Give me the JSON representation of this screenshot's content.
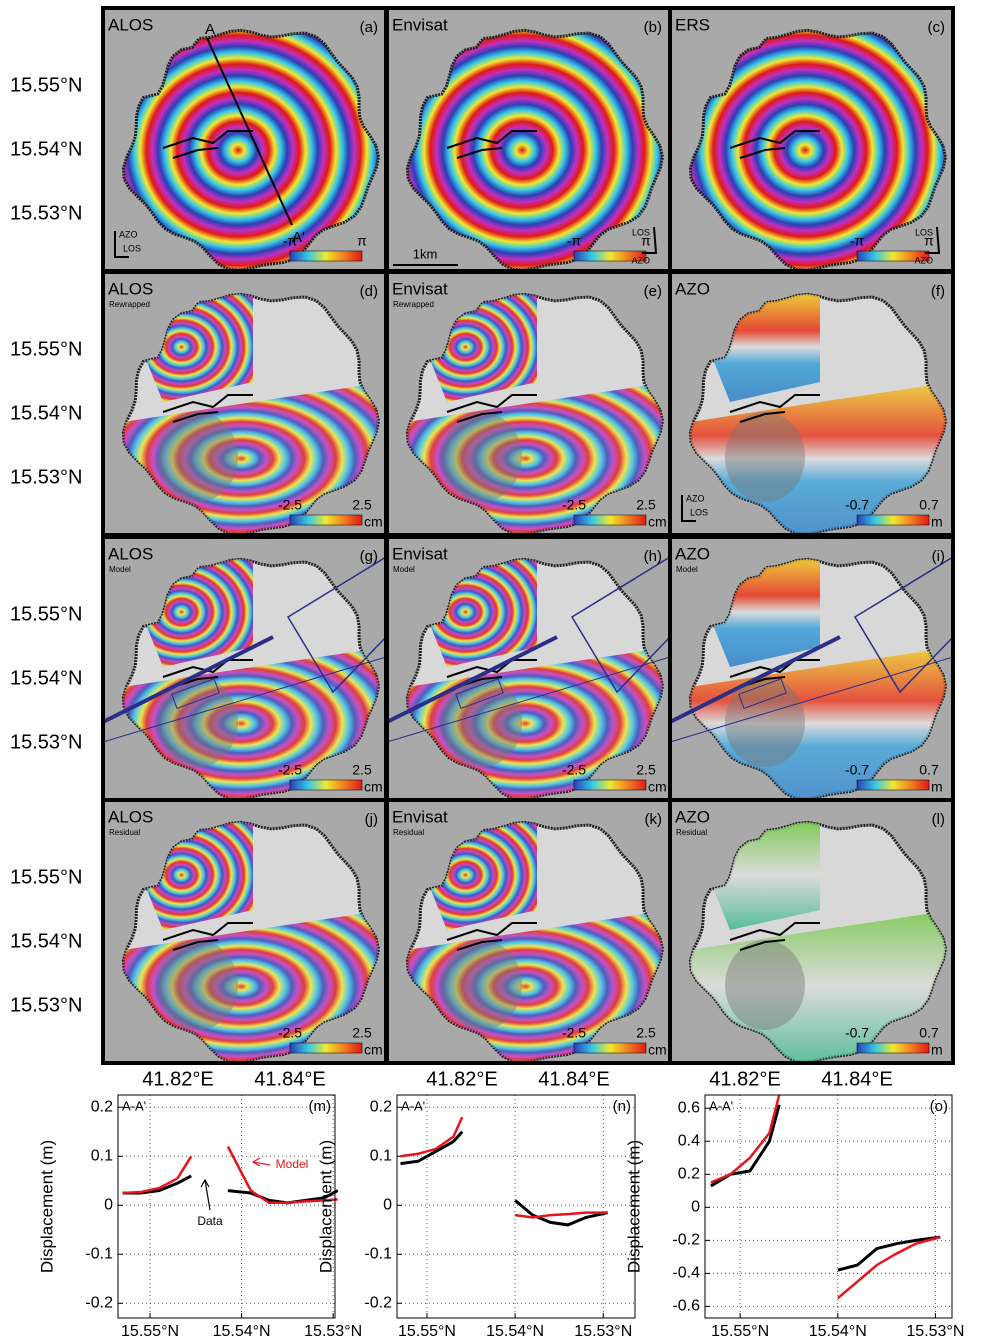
{
  "latitude_labels": [
    "15.55°N",
    "15.54°N",
    "15.53°N"
  ],
  "longitude_labels": [
    "41.82°E",
    "41.84°E"
  ],
  "annotations": {
    "profile_start": "A",
    "profile_end": "A'",
    "scale_bar": "1km"
  },
  "panels": [
    {
      "title": "ALOS",
      "letter": "(a)",
      "scale": [
        "-π",
        "π"
      ],
      "compass": [
        "AZO",
        "LOS"
      ]
    },
    {
      "title": "Envisat",
      "letter": "(b)",
      "scale": [
        "-π",
        "π"
      ],
      "compass": [
        "LOS",
        "AZO"
      ]
    },
    {
      "title": "ERS",
      "letter": "(c)",
      "scale": [
        "-π",
        "π"
      ],
      "compass": [
        "LOS",
        "AZO"
      ]
    },
    {
      "title": "ALOS",
      "subtitle": "Rewrapped",
      "letter": "(d)",
      "scale": [
        "-2.5",
        "2.5"
      ],
      "unit": "cm"
    },
    {
      "title": "Envisat",
      "subtitle": "Rewrapped",
      "letter": "(e)",
      "scale": [
        "-2.5",
        "2.5"
      ],
      "unit": "cm"
    },
    {
      "title": "AZO",
      "letter": "(f)",
      "scale": [
        "-0.7",
        "0.7"
      ],
      "unit": "m",
      "compass": [
        "AZO",
        "LOS"
      ]
    },
    {
      "title": "ALOS",
      "subtitle": "Model",
      "letter": "(g)",
      "scale": [
        "-2.5",
        "2.5"
      ],
      "unit": "cm"
    },
    {
      "title": "Envisat",
      "subtitle": "Model",
      "letter": "(h)",
      "scale": [
        "-2.5",
        "2.5"
      ],
      "unit": "cm"
    },
    {
      "title": "AZO",
      "subtitle": "Model",
      "letter": "(i)",
      "scale": [
        "-0.7",
        "0.7"
      ],
      "unit": "m"
    },
    {
      "title": "ALOS",
      "subtitle": "Residual",
      "letter": "(j)",
      "scale": [
        "-2.5",
        "2.5"
      ],
      "unit": "cm"
    },
    {
      "title": "Envisat",
      "subtitle": "Residual",
      "letter": "(k)",
      "scale": [
        "-2.5",
        "2.5"
      ],
      "unit": "cm"
    },
    {
      "title": "AZO",
      "subtitle": "Residual",
      "letter": "(l)",
      "scale": [
        "-0.7",
        "0.7"
      ],
      "unit": "m"
    }
  ],
  "chart_data": [
    {
      "type": "line",
      "label": "A-A'",
      "panel": "(m)",
      "ylabel": "Displacement (m)",
      "x": [
        15.553,
        15.551,
        15.549,
        15.547,
        15.5455,
        15.544,
        15.5415,
        15.539,
        15.537,
        15.535,
        15.533,
        15.531,
        15.5295
      ],
      "series": [
        {
          "name": "Data",
          "color": "#000000",
          "values": [
            0.025,
            0.025,
            0.03,
            0.045,
            0.06,
            null,
            0.03,
            0.025,
            0.01,
            0.005,
            0.01,
            0.015,
            0.03
          ]
        },
        {
          "name": "Model",
          "color": "#e8141b",
          "values": [
            0.025,
            0.027,
            0.035,
            0.055,
            0.1,
            null,
            0.12,
            0.03,
            0.005,
            0.005,
            0.008,
            0.01,
            0.012
          ]
        }
      ],
      "xlim": [
        15.5535,
        15.5298
      ],
      "xticks": [
        {
          "value": 15.55,
          "label": "15.55°N"
        },
        {
          "value": 15.54,
          "label": "15.54°N"
        },
        {
          "value": 15.53,
          "label": "15.53°N"
        }
      ],
      "ylim": [
        -0.23,
        0.225
      ],
      "yticks": [
        0.2,
        0.1,
        0,
        -0.1,
        -0.2
      ],
      "grid": true
    },
    {
      "type": "line",
      "label": "A-A'",
      "panel": "(n)",
      "ylabel": "Displacement (m)",
      "x": [
        15.553,
        15.551,
        15.549,
        15.547,
        15.546,
        15.543,
        15.54,
        15.538,
        15.536,
        15.534,
        15.532,
        15.5295
      ],
      "series": [
        {
          "color": "#000000",
          "values": [
            0.085,
            0.09,
            0.11,
            0.13,
            0.15,
            null,
            0.01,
            -0.02,
            -0.035,
            -0.04,
            -0.025,
            -0.015
          ]
        },
        {
          "color": "#e8141b",
          "values": [
            0.1,
            0.105,
            0.115,
            0.14,
            0.18,
            null,
            -0.02,
            -0.025,
            -0.02,
            -0.018,
            -0.015,
            -0.015
          ]
        }
      ],
      "xlim": [
        15.5534,
        15.5264
      ],
      "xticks": [
        {
          "value": 15.55,
          "label": "15.55°N"
        },
        {
          "value": 15.54,
          "label": "15.54°N"
        },
        {
          "value": 15.53,
          "label": "15.53°N"
        }
      ],
      "ylim": [
        -0.23,
        0.225
      ],
      "yticks": [
        0.2,
        0.1,
        0,
        -0.1,
        -0.2
      ],
      "grid": true
    },
    {
      "type": "line",
      "label": "A-A'",
      "panel": "(o)",
      "ylabel": "Displacement (m)",
      "x": [
        15.553,
        15.551,
        15.549,
        15.547,
        15.546,
        15.543,
        15.54,
        15.538,
        15.536,
        15.534,
        15.532,
        15.5295
      ],
      "series": [
        {
          "color": "#000000",
          "values": [
            0.13,
            0.2,
            0.22,
            0.4,
            0.62,
            null,
            -0.38,
            -0.35,
            -0.25,
            -0.22,
            -0.2,
            -0.18
          ]
        },
        {
          "color": "#e8141b",
          "values": [
            0.15,
            0.2,
            0.3,
            0.45,
            0.68,
            null,
            -0.55,
            -0.45,
            -0.35,
            -0.28,
            -0.22,
            -0.18
          ]
        }
      ],
      "xlim": [
        15.5536,
        15.5283
      ],
      "xticks": [
        {
          "value": 15.55,
          "label": "15.55°N"
        },
        {
          "value": 15.54,
          "label": "15.54°N"
        },
        {
          "value": 15.53,
          "label": "15.53°N"
        }
      ],
      "ylim": [
        -0.67,
        0.68
      ],
      "yticks": [
        0.6,
        0.4,
        0.2,
        0,
        -0.2,
        -0.4,
        -0.6
      ],
      "grid": true
    }
  ]
}
